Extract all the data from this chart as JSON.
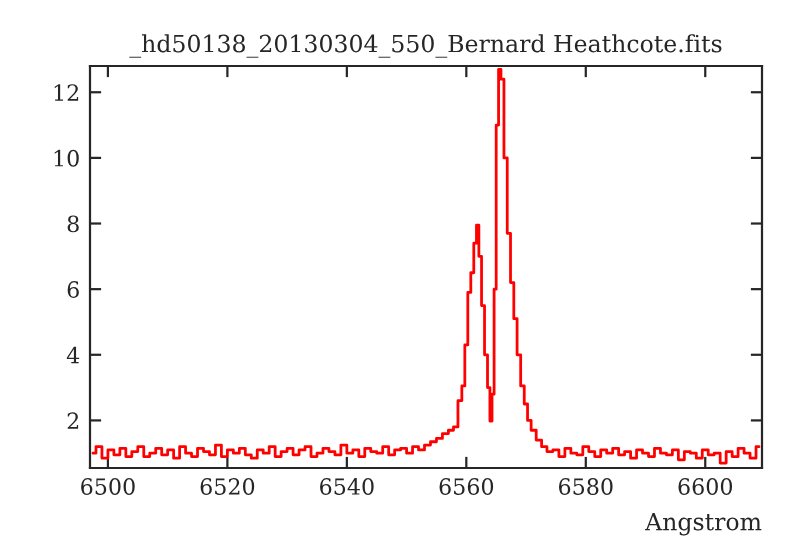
{
  "chart_data": {
    "type": "line",
    "title": "_hd50138_20130304_550_Bernard Heathcote.fits",
    "xlabel": "Angstrom",
    "series": [
      {
        "color": "#ff0000",
        "x": [
          6497.5,
          6498.5,
          6499.5,
          6500.5,
          6501.5,
          6502.5,
          6503.5,
          6504.5,
          6505.5,
          6506.5,
          6507.5,
          6508.5,
          6509.5,
          6510.5,
          6511.5,
          6512.5,
          6513.5,
          6514.5,
          6515.5,
          6516.5,
          6517.5,
          6518.5,
          6519.5,
          6520.5,
          6521.5,
          6522.5,
          6523.5,
          6524.5,
          6525.5,
          6526.5,
          6527.5,
          6528.5,
          6529.5,
          6530.5,
          6531.5,
          6532.5,
          6533.5,
          6534.5,
          6535.5,
          6536.5,
          6537.5,
          6538.5,
          6539.5,
          6540.5,
          6541.5,
          6542.5,
          6543.5,
          6544.5,
          6545.5,
          6546.5,
          6547.5,
          6548.5,
          6549.5,
          6550.5,
          6551.5,
          6552.5,
          6553.5,
          6554.5,
          6555.5,
          6556.5,
          6557.5,
          6558.2,
          6559.0,
          6559.5,
          6560.0,
          6560.5,
          6561.0,
          6561.5,
          6561.9,
          6562.3,
          6562.8,
          6563.3,
          6563.8,
          6564.1,
          6564.5,
          6564.8,
          6565.2,
          6565.6,
          6566.0,
          6566.6,
          6567.1,
          6567.7,
          6568.2,
          6568.8,
          6569.4,
          6570.0,
          6570.5,
          6571.2,
          6572.2,
          6573.0,
          6574.0,
          6575.0,
          6576.0,
          6577.0,
          6578.0,
          6579.0,
          6580.0,
          6581.0,
          6582.0,
          6583.0,
          6584.0,
          6585.0,
          6586.0,
          6587.0,
          6588.0,
          6589.0,
          6590.0,
          6591.0,
          6592.0,
          6593.0,
          6594.0,
          6595.0,
          6596.0,
          6597.0,
          6598.0,
          6599.0,
          6600.0,
          6601.0,
          6602.0,
          6603.0,
          6604.0,
          6605.0,
          6606.0,
          6607.0,
          6608.0,
          6609.0
        ],
        "values": [
          1.0,
          1.2,
          0.85,
          1.1,
          0.95,
          1.15,
          0.9,
          1.05,
          1.2,
          0.9,
          1.0,
          1.15,
          0.95,
          1.1,
          0.85,
          1.2,
          1.0,
          0.9,
          1.15,
          1.05,
          0.95,
          1.25,
          0.9,
          1.1,
          1.0,
          1.15,
          0.95,
          0.85,
          1.1,
          1.0,
          1.2,
          0.9,
          1.05,
          1.15,
          0.95,
          1.1,
          1.2,
          0.9,
          1.0,
          1.15,
          1.05,
          0.95,
          1.25,
          1.0,
          1.1,
          0.9,
          1.15,
          1.05,
          1.0,
          1.2,
          0.95,
          1.1,
          1.15,
          1.0,
          1.2,
          1.1,
          1.25,
          1.35,
          1.45,
          1.6,
          1.7,
          1.8,
          2.6,
          3.05,
          4.3,
          5.9,
          6.5,
          7.4,
          7.95,
          7.0,
          5.5,
          4.0,
          3.0,
          1.98,
          2.8,
          6.0,
          11.0,
          12.7,
          12.4,
          10.0,
          7.7,
          6.2,
          5.1,
          4.0,
          3.05,
          2.5,
          2.0,
          1.7,
          1.4,
          1.2,
          1.05,
          1.1,
          0.9,
          1.15,
          1.0,
          0.95,
          1.2,
          1.05,
          0.9,
          1.1,
          1.0,
          1.15,
          0.95,
          1.05,
          0.85,
          1.1,
          1.0,
          0.9,
          1.15,
          1.0,
          0.95,
          1.1,
          0.8,
          1.05,
          1.0,
          0.85,
          1.1,
          0.95,
          1.0,
          0.7,
          1.05,
          0.9,
          1.15,
          1.0,
          0.85,
          1.2
        ]
      }
    ],
    "xlim": [
      6497,
      6609.5
    ],
    "ylim": [
      0.55,
      12.8
    ],
    "xticks": [
      6500,
      6520,
      6540,
      6560,
      6580,
      6600
    ],
    "yticks": [
      2,
      4,
      6,
      8,
      10,
      12
    ],
    "grid": false,
    "legend": false
  }
}
